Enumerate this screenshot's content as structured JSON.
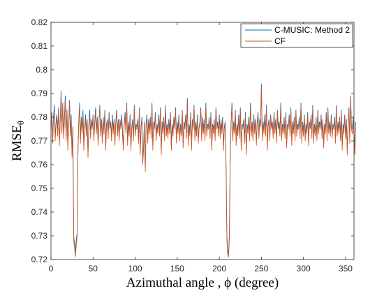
{
  "chart_data": {
    "type": "line",
    "title": "",
    "xlabel": "Azimuthal angle , ϕ (degree)",
    "ylabel": {
      "base": "RMSE",
      "subscript": "θ"
    },
    "xlim": [
      0,
      360
    ],
    "ylim": [
      0.72,
      0.82
    ],
    "xticks": [
      0,
      50,
      100,
      150,
      200,
      250,
      300,
      350
    ],
    "yticks": [
      0.72,
      0.73,
      0.74,
      0.75,
      0.76,
      0.77,
      0.78,
      0.79,
      0.8,
      0.81,
      0.82
    ],
    "grid": false,
    "legend": {
      "location": "top-right"
    },
    "x_start": 0,
    "x_step": 1,
    "series": [
      {
        "name": "C-MUSIC: Method 2",
        "color": "#0072BD",
        "values": [
          0.776,
          0.782,
          0.771,
          0.78,
          0.785,
          0.772,
          0.778,
          0.781,
          0.774,
          0.784,
          0.77,
          0.779,
          0.791,
          0.775,
          0.786,
          0.773,
          0.78,
          0.789,
          0.772,
          0.783,
          0.768,
          0.777,
          0.787,
          0.774,
          0.781,
          0.765,
          0.776,
          0.73,
          0.727,
          0.723,
          0.728,
          0.731,
          0.766,
          0.778,
          0.786,
          0.771,
          0.78,
          0.775,
          0.783,
          0.768,
          0.776,
          0.781,
          0.774,
          0.779,
          0.765,
          0.777,
          0.783,
          0.773,
          0.779,
          0.776,
          0.781,
          0.772,
          0.778,
          0.784,
          0.775,
          0.78,
          0.77,
          0.778,
          0.785,
          0.774,
          0.779,
          0.771,
          0.78,
          0.775,
          0.783,
          0.768,
          0.777,
          0.779,
          0.773,
          0.782,
          0.776,
          0.778,
          0.772,
          0.781,
          0.775,
          0.779,
          0.77,
          0.778,
          0.783,
          0.774,
          0.779,
          0.772,
          0.779,
          0.776,
          0.781,
          0.774,
          0.768,
          0.777,
          0.782,
          0.775,
          0.786,
          0.77,
          0.778,
          0.774,
          0.781,
          0.768,
          0.776,
          0.779,
          0.772,
          0.785,
          0.774,
          0.777,
          0.776,
          0.779,
          0.771,
          0.784,
          0.766,
          0.776,
          0.78,
          0.762,
          0.768,
          0.778,
          0.758,
          0.777,
          0.781,
          0.771,
          0.779,
          0.775,
          0.78,
          0.773,
          0.786,
          0.768,
          0.778,
          0.776,
          0.782,
          0.772,
          0.777,
          0.775,
          0.781,
          0.774,
          0.784,
          0.766,
          0.778,
          0.775,
          0.78,
          0.772,
          0.785,
          0.774,
          0.777,
          0.773,
          0.779,
          0.775,
          0.782,
          0.768,
          0.777,
          0.774,
          0.78,
          0.776,
          0.784,
          0.771,
          0.778,
          0.775,
          0.781,
          0.772,
          0.777,
          0.774,
          0.783,
          0.769,
          0.778,
          0.776,
          0.781,
          0.773,
          0.788,
          0.77,
          0.777,
          0.774,
          0.782,
          0.768,
          0.779,
          0.776,
          0.785,
          0.772,
          0.778,
          0.774,
          0.781,
          0.771,
          0.776,
          0.778,
          0.784,
          0.772,
          0.78,
          0.775,
          0.779,
          0.772,
          0.786,
          0.774,
          0.777,
          0.776,
          0.78,
          0.773,
          0.782,
          0.768,
          0.777,
          0.775,
          0.779,
          0.772,
          0.784,
          0.776,
          0.778,
          0.774,
          0.781,
          0.773,
          0.779,
          0.775,
          0.78,
          0.768,
          0.776,
          0.778,
          0.76,
          0.73,
          0.724,
          0.722,
          0.731,
          0.765,
          0.778,
          0.786,
          0.772,
          0.778,
          0.775,
          0.783,
          0.77,
          0.777,
          0.774,
          0.781,
          0.773,
          0.784,
          0.768,
          0.777,
          0.776,
          0.779,
          0.771,
          0.782,
          0.766,
          0.777,
          0.775,
          0.78,
          0.772,
          0.786,
          0.774,
          0.778,
          0.772,
          0.781,
          0.775,
          0.779,
          0.77,
          0.778,
          0.782,
          0.773,
          0.779,
          0.777,
          0.794,
          0.772,
          0.778,
          0.775,
          0.781,
          0.774,
          0.785,
          0.768,
          0.777,
          0.779,
          0.772,
          0.781,
          0.776,
          0.778,
          0.773,
          0.782,
          0.775,
          0.779,
          0.771,
          0.783,
          0.776,
          0.778,
          0.774,
          0.786,
          0.772,
          0.777,
          0.775,
          0.78,
          0.773,
          0.782,
          0.769,
          0.777,
          0.776,
          0.781,
          0.774,
          0.784,
          0.77,
          0.778,
          0.775,
          0.78,
          0.772,
          0.783,
          0.774,
          0.777,
          0.776,
          0.78,
          0.773,
          0.786,
          0.771,
          0.778,
          0.774,
          0.781,
          0.772,
          0.777,
          0.775,
          0.782,
          0.77,
          0.778,
          0.776,
          0.781,
          0.773,
          0.785,
          0.771,
          0.777,
          0.774,
          0.78,
          0.772,
          0.783,
          0.775,
          0.778,
          0.776,
          0.781,
          0.773,
          0.779,
          0.769,
          0.777,
          0.775,
          0.782,
          0.772,
          0.784,
          0.775,
          0.778,
          0.774,
          0.781,
          0.773,
          0.777,
          0.776,
          0.78,
          0.771,
          0.785,
          0.774,
          0.778,
          0.775,
          0.78,
          0.772,
          0.783,
          0.768,
          0.777,
          0.775,
          0.781,
          0.773,
          0.779,
          0.766,
          0.778,
          0.784,
          0.771,
          0.789,
          0.776,
          0.775,
          0.78,
          0.774,
          0.765,
          0.778
        ]
      },
      {
        "name": "CF",
        "color": "#D95319",
        "values": [
          0.774,
          0.781,
          0.769,
          0.779,
          0.783,
          0.77,
          0.777,
          0.779,
          0.772,
          0.783,
          0.768,
          0.778,
          0.789,
          0.773,
          0.785,
          0.771,
          0.778,
          0.787,
          0.77,
          0.782,
          0.766,
          0.776,
          0.786,
          0.772,
          0.779,
          0.763,
          0.775,
          0.728,
          0.725,
          0.721,
          0.726,
          0.729,
          0.764,
          0.777,
          0.785,
          0.769,
          0.779,
          0.773,
          0.781,
          0.766,
          0.775,
          0.779,
          0.772,
          0.778,
          0.763,
          0.776,
          0.781,
          0.771,
          0.778,
          0.775,
          0.78,
          0.77,
          0.777,
          0.782,
          0.773,
          0.779,
          0.768,
          0.777,
          0.784,
          0.772,
          0.778,
          0.769,
          0.779,
          0.773,
          0.782,
          0.766,
          0.776,
          0.778,
          0.771,
          0.781,
          0.775,
          0.777,
          0.77,
          0.78,
          0.773,
          0.778,
          0.768,
          0.777,
          0.782,
          0.772,
          0.778,
          0.77,
          0.778,
          0.775,
          0.78,
          0.772,
          0.766,
          0.776,
          0.781,
          0.773,
          0.785,
          0.768,
          0.777,
          0.772,
          0.78,
          0.766,
          0.775,
          0.778,
          0.77,
          0.784,
          0.772,
          0.776,
          0.775,
          0.778,
          0.769,
          0.783,
          0.764,
          0.775,
          0.779,
          0.76,
          0.766,
          0.777,
          0.757,
          0.776,
          0.78,
          0.769,
          0.778,
          0.773,
          0.779,
          0.771,
          0.785,
          0.766,
          0.777,
          0.775,
          0.781,
          0.77,
          0.776,
          0.773,
          0.78,
          0.772,
          0.783,
          0.764,
          0.777,
          0.773,
          0.779,
          0.77,
          0.784,
          0.772,
          0.776,
          0.771,
          0.778,
          0.773,
          0.781,
          0.766,
          0.776,
          0.772,
          0.779,
          0.775,
          0.783,
          0.769,
          0.777,
          0.773,
          0.78,
          0.77,
          0.776,
          0.772,
          0.782,
          0.767,
          0.777,
          0.775,
          0.78,
          0.771,
          0.787,
          0.768,
          0.776,
          0.772,
          0.781,
          0.766,
          0.778,
          0.775,
          0.784,
          0.77,
          0.777,
          0.772,
          0.78,
          0.769,
          0.775,
          0.777,
          0.783,
          0.77,
          0.779,
          0.773,
          0.778,
          0.77,
          0.785,
          0.772,
          0.776,
          0.775,
          0.779,
          0.771,
          0.781,
          0.766,
          0.776,
          0.773,
          0.778,
          0.77,
          0.783,
          0.775,
          0.777,
          0.772,
          0.78,
          0.771,
          0.778,
          0.773,
          0.779,
          0.766,
          0.775,
          0.777,
          0.758,
          0.728,
          0.722,
          0.721,
          0.729,
          0.763,
          0.777,
          0.785,
          0.77,
          0.777,
          0.773,
          0.782,
          0.768,
          0.776,
          0.772,
          0.78,
          0.771,
          0.783,
          0.766,
          0.776,
          0.775,
          0.778,
          0.769,
          0.781,
          0.764,
          0.776,
          0.773,
          0.779,
          0.77,
          0.785,
          0.772,
          0.777,
          0.77,
          0.78,
          0.773,
          0.778,
          0.768,
          0.777,
          0.781,
          0.771,
          0.778,
          0.776,
          0.793,
          0.77,
          0.777,
          0.773,
          0.78,
          0.772,
          0.784,
          0.766,
          0.776,
          0.778,
          0.77,
          0.78,
          0.775,
          0.777,
          0.771,
          0.781,
          0.773,
          0.778,
          0.769,
          0.782,
          0.775,
          0.777,
          0.772,
          0.785,
          0.77,
          0.776,
          0.773,
          0.779,
          0.771,
          0.781,
          0.767,
          0.776,
          0.775,
          0.78,
          0.772,
          0.783,
          0.768,
          0.777,
          0.773,
          0.779,
          0.77,
          0.782,
          0.772,
          0.776,
          0.775,
          0.779,
          0.771,
          0.785,
          0.769,
          0.777,
          0.772,
          0.78,
          0.77,
          0.776,
          0.773,
          0.781,
          0.768,
          0.777,
          0.775,
          0.78,
          0.771,
          0.784,
          0.769,
          0.776,
          0.772,
          0.779,
          0.77,
          0.782,
          0.773,
          0.777,
          0.775,
          0.78,
          0.771,
          0.778,
          0.767,
          0.776,
          0.773,
          0.781,
          0.77,
          0.783,
          0.773,
          0.777,
          0.772,
          0.78,
          0.771,
          0.776,
          0.775,
          0.779,
          0.769,
          0.784,
          0.772,
          0.777,
          0.773,
          0.779,
          0.77,
          0.782,
          0.766,
          0.776,
          0.773,
          0.78,
          0.771,
          0.778,
          0.764,
          0.777,
          0.783,
          0.769,
          0.788,
          0.775,
          0.773,
          0.779,
          0.772,
          0.764,
          0.776
        ]
      }
    ]
  }
}
